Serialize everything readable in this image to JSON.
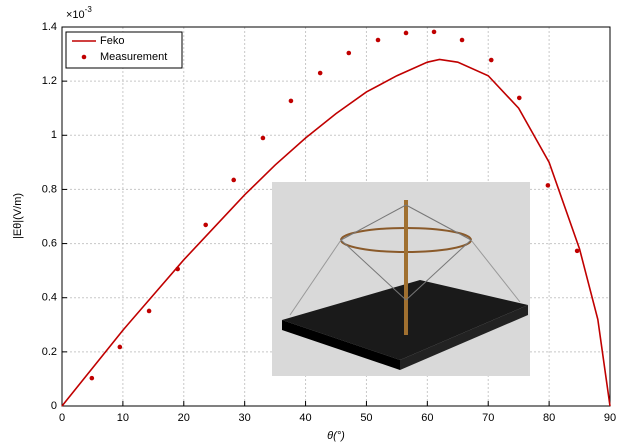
{
  "chart_data": {
    "type": "line",
    "xlabel": "θ(°)",
    "ylabel": "|Eθ|(V/m)",
    "y_multiplier_base": "×10",
    "y_multiplier_exponent": "-3",
    "xlim": [
      0,
      90
    ],
    "xticks": [
      0,
      10,
      20,
      30,
      40,
      50,
      60,
      70,
      80,
      90
    ],
    "ylim": [
      0,
      1.4
    ],
    "yticks": [
      0,
      0.2,
      0.4,
      0.6,
      0.8,
      1,
      1.2,
      1.4
    ],
    "grid": true,
    "legend": "upper left",
    "series": [
      {
        "name": "Feko",
        "color": "#c00000",
        "style": "line",
        "x": [
          0,
          5,
          10,
          15,
          20,
          25,
          30,
          35,
          40,
          45,
          50,
          55,
          60,
          62,
          65,
          70,
          75,
          80,
          85,
          88,
          90
        ],
        "values": [
          0,
          0.14,
          0.28,
          0.41,
          0.54,
          0.66,
          0.78,
          0.89,
          0.99,
          1.08,
          1.16,
          1.22,
          1.27,
          1.28,
          1.27,
          1.22,
          1.1,
          0.9,
          0.58,
          0.32,
          0
        ]
      },
      {
        "name": "Measurement",
        "color": "#c00000",
        "style": "markers",
        "x": [
          4.9,
          9.5,
          14.3,
          19,
          23.6,
          28.2,
          33,
          37.6,
          42.4,
          47.1,
          51.9,
          56.5,
          61.1,
          65.7,
          70.5,
          75.1,
          79.8,
          84.6
        ],
        "values": [
          0.103,
          0.218,
          0.351,
          0.506,
          0.669,
          0.835,
          0.99,
          1.127,
          1.23,
          1.304,
          1.352,
          1.378,
          1.382,
          1.352,
          1.278,
          1.138,
          0.815,
          0.573
        ]
      }
    ]
  }
}
